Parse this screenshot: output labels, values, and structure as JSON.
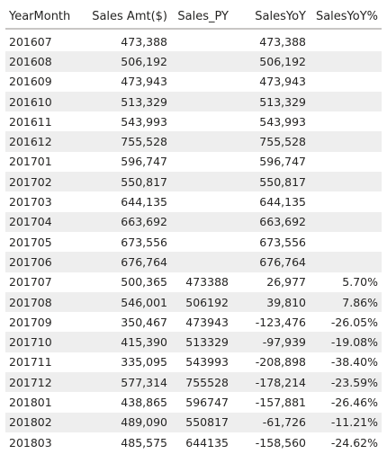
{
  "columns": [
    {
      "label": "YearMonth",
      "align": "left",
      "name": "col-header-yearmonth"
    },
    {
      "label": "Sales Amt($)",
      "align": "right",
      "name": "col-header-sales-amt"
    },
    {
      "label": "Sales_PY",
      "align": "right",
      "name": "col-header-sales-py"
    },
    {
      "label": "SalesYoY",
      "align": "right",
      "name": "col-header-sales-yoy"
    },
    {
      "label": "SalesYoY%",
      "align": "right",
      "name": "col-header-sales-yoy-pct"
    }
  ],
  "rows": [
    [
      "201607",
      "473,388",
      "",
      "473,388",
      ""
    ],
    [
      "201608",
      "506,192",
      "",
      "506,192",
      ""
    ],
    [
      "201609",
      "473,943",
      "",
      "473,943",
      ""
    ],
    [
      "201610",
      "513,329",
      "",
      "513,329",
      ""
    ],
    [
      "201611",
      "543,993",
      "",
      "543,993",
      ""
    ],
    [
      "201612",
      "755,528",
      "",
      "755,528",
      ""
    ],
    [
      "201701",
      "596,747",
      "",
      "596,747",
      ""
    ],
    [
      "201702",
      "550,817",
      "",
      "550,817",
      ""
    ],
    [
      "201703",
      "644,135",
      "",
      "644,135",
      ""
    ],
    [
      "201704",
      "663,692",
      "",
      "663,692",
      ""
    ],
    [
      "201705",
      "673,556",
      "",
      "673,556",
      ""
    ],
    [
      "201706",
      "676,764",
      "",
      "676,764",
      ""
    ],
    [
      "201707",
      "500,365",
      "473388",
      "26,977",
      "5.70%"
    ],
    [
      "201708",
      "546,001",
      "506192",
      "39,810",
      "7.86%"
    ],
    [
      "201709",
      "350,467",
      "473943",
      "-123,476",
      "-26.05%"
    ],
    [
      "201710",
      "415,390",
      "513329",
      "-97,939",
      "-19.08%"
    ],
    [
      "201711",
      "335,095",
      "543993",
      "-208,898",
      "-38.40%"
    ],
    [
      "201712",
      "577,314",
      "755528",
      "-178,214",
      "-23.59%"
    ],
    [
      "201801",
      "438,865",
      "596747",
      "-157,881",
      "-26.46%"
    ],
    [
      "201802",
      "489,090",
      "550817",
      "-61,726",
      "-11.21%"
    ],
    [
      "201803",
      "485,575",
      "644135",
      "-158,560",
      "-24.62%"
    ]
  ],
  "colors": {
    "text": "#252423",
    "stripe": "#eeeeee",
    "header_rule": "#c8c6c4",
    "background": "#ffffff"
  }
}
